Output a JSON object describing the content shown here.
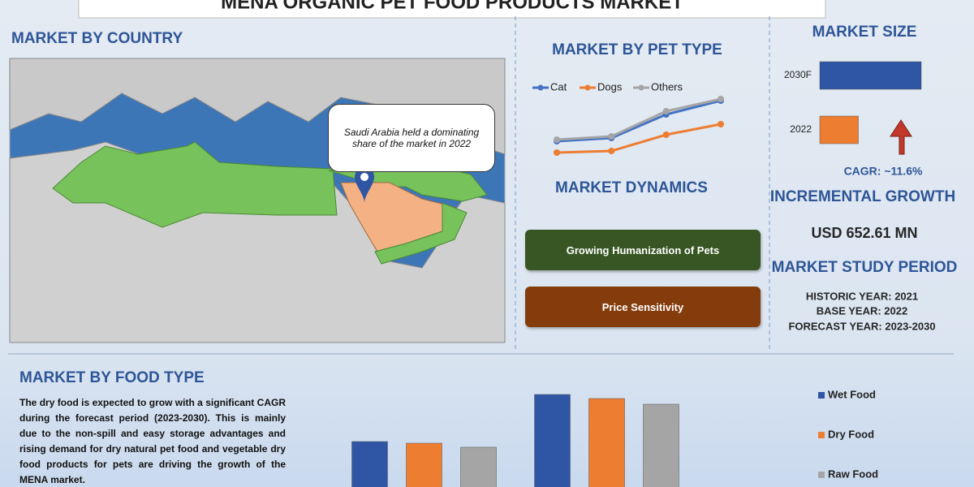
{
  "title": "MENA ORGANIC PET FOOD PRODUCTS MARKET",
  "country": {
    "heading": "MARKET BY COUNTRY",
    "callout": "Saudi Arabia held a dominating share of the market in 2022"
  },
  "dynamics": {
    "heading": "MARKET DYNAMICS",
    "items": [
      "Growing Humanization of Pets",
      "Price Sensitivity"
    ]
  },
  "market_size": {
    "heading": "MARKET SIZE",
    "cagr": "CAGR:  ~11.6%"
  },
  "incremental": {
    "heading": "INCREMENTAL GROWTH",
    "value": "USD 652.61 MN"
  },
  "study_period": {
    "heading": "MARKET STUDY PERIOD",
    "items": [
      "HISTORIC YEAR: 2021",
      "BASE YEAR: 2022",
      "FORECAST YEAR: 2023-2030"
    ]
  },
  "food_type": {
    "heading": "MARKET BY FOOD TYPE",
    "text": "The dry food is expected to grow with a significant CAGR during the forecast period (2023-2030). This is mainly due to the non-spill and easy storage advantages and rising demand for dry natural pet food and vegetable dry food products for pets are driving the growth of the MENA market."
  },
  "chart_data": [
    {
      "type": "line",
      "title": "MARKET BY PET TYPE",
      "categories": [
        null,
        null,
        null,
        null
      ],
      "ylim": [
        0,
        100
      ],
      "series": [
        {
          "name": "Cat",
          "color": "#4472c4",
          "values": [
            26,
            30,
            59,
            76
          ]
        },
        {
          "name": "Dogs",
          "color": "#ed7d31",
          "values": [
            12,
            14,
            34,
            47
          ]
        },
        {
          "name": "Others",
          "color": "#a5a5a5",
          "values": [
            28,
            32,
            63,
            78
          ]
        }
      ]
    },
    {
      "type": "barh",
      "categories": [
        "2030F",
        "2022"
      ],
      "values": [
        100,
        38
      ],
      "colors": [
        "#2f55a5",
        "#ed7d31"
      ],
      "xlim": [
        0,
        100
      ]
    },
    {
      "type": "bar",
      "categories": [
        null,
        null
      ],
      "ylim": [
        0,
        130
      ],
      "legend": "right",
      "series": [
        {
          "name": "Wet Food",
          "color": "#2f55a5",
          "values": [
            66,
            124
          ]
        },
        {
          "name": "Dry Food",
          "color": "#ed7d31",
          "values": [
            64,
            119
          ]
        },
        {
          "name": "Raw Food",
          "color": "#a5a5a5",
          "values": [
            59,
            112
          ]
        }
      ]
    }
  ]
}
